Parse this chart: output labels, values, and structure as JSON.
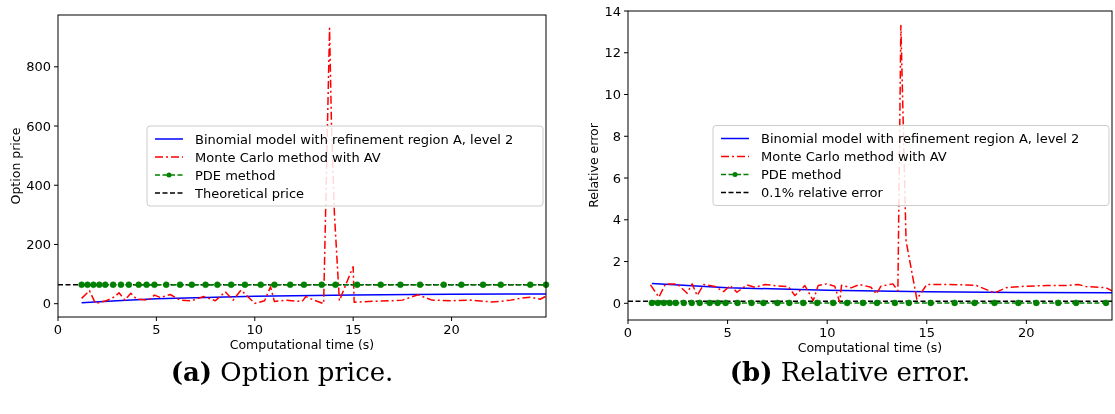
{
  "chart_data": [
    {
      "type": "line",
      "xlabel": "Computational time (s)",
      "ylabel": "Option price",
      "xlim": [
        0,
        24.8
      ],
      "ylim": [
        -45,
        975
      ],
      "xticks": [
        0,
        5,
        10,
        15,
        20
      ],
      "yticks": [
        0,
        200,
        400,
        600,
        800
      ],
      "legend": "center right",
      "grid": false,
      "series": [
        {
          "name": "Binomial model with refinement region A, level 2",
          "color": "#0000ff",
          "line_style": "solid",
          "marker": "none",
          "x": [
            1.2,
            3,
            5,
            8,
            10,
            13,
            15,
            18,
            20,
            24.8
          ],
          "values": [
            3,
            10,
            17,
            22,
            25,
            28,
            29,
            31,
            32,
            33
          ]
        },
        {
          "name": "Monte Carlo method with AV",
          "color": "#ff0000",
          "line_style": "dashdot",
          "marker": "none",
          "x": [
            1.2,
            1.6,
            1.9,
            2.45,
            2.9,
            3.1,
            3.4,
            3.7,
            4.0,
            4.6,
            4.9,
            5.2,
            5.7,
            6.2,
            6.8,
            7.4,
            8.0,
            8.5,
            8.9,
            9.3,
            10.0,
            10.5,
            10.8,
            11.0,
            11.6,
            12.4,
            12.6,
            13.0,
            13.5,
            13.8,
            13.9,
            14.05,
            14.3,
            14.6,
            15.0,
            15.05,
            16,
            17,
            17.5,
            18.3,
            19,
            20,
            21,
            22,
            22.5,
            23,
            23.5,
            24,
            24.5,
            24.8
          ],
          "values": [
            18,
            44,
            1,
            10,
            24,
            37,
            12,
            35,
            15,
            12,
            29,
            21,
            31,
            12,
            10,
            24,
            10,
            40,
            12,
            46,
            1,
            10,
            57,
            7,
            12,
            7,
            24,
            12,
            0,
            930,
            600,
            300,
            10,
            60,
            125,
            5,
            8,
            10,
            12,
            30,
            12,
            10,
            12,
            6,
            8,
            12,
            18,
            22,
            15,
            25
          ]
        },
        {
          "name": "PDE method",
          "color": "#008000",
          "line_style": "dashed",
          "marker": "circle",
          "x": [
            1.2,
            1.5,
            1.8,
            2.1,
            2.4,
            2.8,
            3.2,
            3.6,
            4.1,
            4.5,
            4.9,
            5.5,
            6.2,
            6.8,
            7.5,
            8.1,
            8.8,
            9.5,
            10.3,
            11.0,
            11.8,
            12.5,
            13.4,
            14.1,
            15.2,
            16.4,
            17.4,
            18.4,
            19.6,
            20.5,
            21.6,
            22.5,
            24.0,
            24.8
          ],
          "values": [
            64,
            64,
            64,
            64,
            64,
            64,
            64,
            64,
            64,
            64,
            64,
            64,
            64,
            64,
            64,
            64,
            64,
            64,
            64,
            64,
            64,
            64,
            64,
            64,
            64,
            64,
            64,
            64,
            64,
            64,
            64,
            64,
            64,
            64
          ]
        }
      ],
      "ref_lines": [
        {
          "axis": "y",
          "value": 64,
          "label": "Theoretical price",
          "color": "#000000",
          "line_style": "dashed"
        }
      ],
      "annotations": [
        "(a) Option price."
      ]
    },
    {
      "type": "line",
      "xlabel": "Computational time (s)",
      "ylabel": "Relative error",
      "xlim": [
        0,
        24.3
      ],
      "ylim": [
        -0.8,
        14
      ],
      "xticks": [
        0,
        5,
        10,
        15,
        20
      ],
      "yticks": [
        0,
        2,
        4,
        6,
        8,
        10,
        12,
        14
      ],
      "legend": "center right",
      "grid": false,
      "series": [
        {
          "name": "Binomial model with refinement region A, level 2",
          "color": "#0000ff",
          "line_style": "solid",
          "marker": "none",
          "x": [
            1.2,
            5,
            10,
            15,
            20,
            24.3
          ],
          "values": [
            0.95,
            0.75,
            0.62,
            0.55,
            0.52,
            0.5
          ]
        },
        {
          "name": "Monte Carlo method with AV",
          "color": "#ff0000",
          "line_style": "dashdot",
          "marker": "none",
          "x": [
            1.13,
            1.55,
            1.88,
            2.47,
            2.97,
            3.22,
            3.47,
            3.8,
            4.38,
            4.8,
            5.13,
            5.47,
            5.97,
            6.38,
            6.88,
            7.55,
            8.05,
            8.38,
            8.88,
            9.3,
            9.55,
            9.97,
            10.38,
            10.63,
            10.72,
            11.2,
            11.63,
            12.2,
            12.47,
            12.7,
            13.3,
            13.55,
            13.7,
            13.96,
            14.5,
            15.0,
            16,
            17,
            17.5,
            18.4,
            19,
            20,
            21,
            22,
            22.6,
            23,
            24,
            24.3
          ],
          "values": [
            0.88,
            0.29,
            0.93,
            0.93,
            0.48,
            0.93,
            0.37,
            0.9,
            0.8,
            0.56,
            0.85,
            0.53,
            0.88,
            0.77,
            0.9,
            0.83,
            0.8,
            0.37,
            0.85,
            0.13,
            0.85,
            0.93,
            0.82,
            0.05,
            0.86,
            0.74,
            0.9,
            0.77,
            0.45,
            0.82,
            0.93,
            0.6,
            13.3,
            3,
            0.2,
            0.9,
            0.9,
            0.88,
            0.85,
            0.5,
            0.75,
            0.82,
            0.85,
            0.85,
            0.9,
            0.8,
            0.75,
            0.6
          ]
        },
        {
          "name": "PDE method",
          "color": "#008000",
          "line_style": "dashed",
          "marker": "circle",
          "x": [
            1.2,
            1.5,
            1.8,
            2.1,
            2.4,
            2.8,
            3.2,
            3.6,
            4.1,
            4.5,
            4.9,
            5.5,
            6.2,
            6.8,
            7.5,
            8.1,
            8.8,
            9.5,
            10.3,
            11.0,
            11.8,
            12.5,
            13.4,
            14.1,
            15.2,
            16.4,
            17.4,
            18.4,
            19.6,
            20.5,
            21.6,
            22.5,
            24.0
          ],
          "values": [
            0.02,
            0.02,
            0.02,
            0.02,
            0.02,
            0.02,
            0.02,
            0.02,
            0.02,
            0.02,
            0.02,
            0.02,
            0.02,
            0.02,
            0.02,
            0.02,
            0.02,
            0.02,
            0.02,
            0.02,
            0.02,
            0.02,
            0.02,
            0.02,
            0.02,
            0.02,
            0.02,
            0.02,
            0.02,
            0.02,
            0.02,
            0.02,
            0.02
          ]
        }
      ],
      "ref_lines": [
        {
          "axis": "y",
          "value": 0.1,
          "label": "0.1% relative error",
          "color": "#000000",
          "line_style": "dashed"
        }
      ],
      "annotations": [
        "(b) Relative error."
      ]
    }
  ]
}
